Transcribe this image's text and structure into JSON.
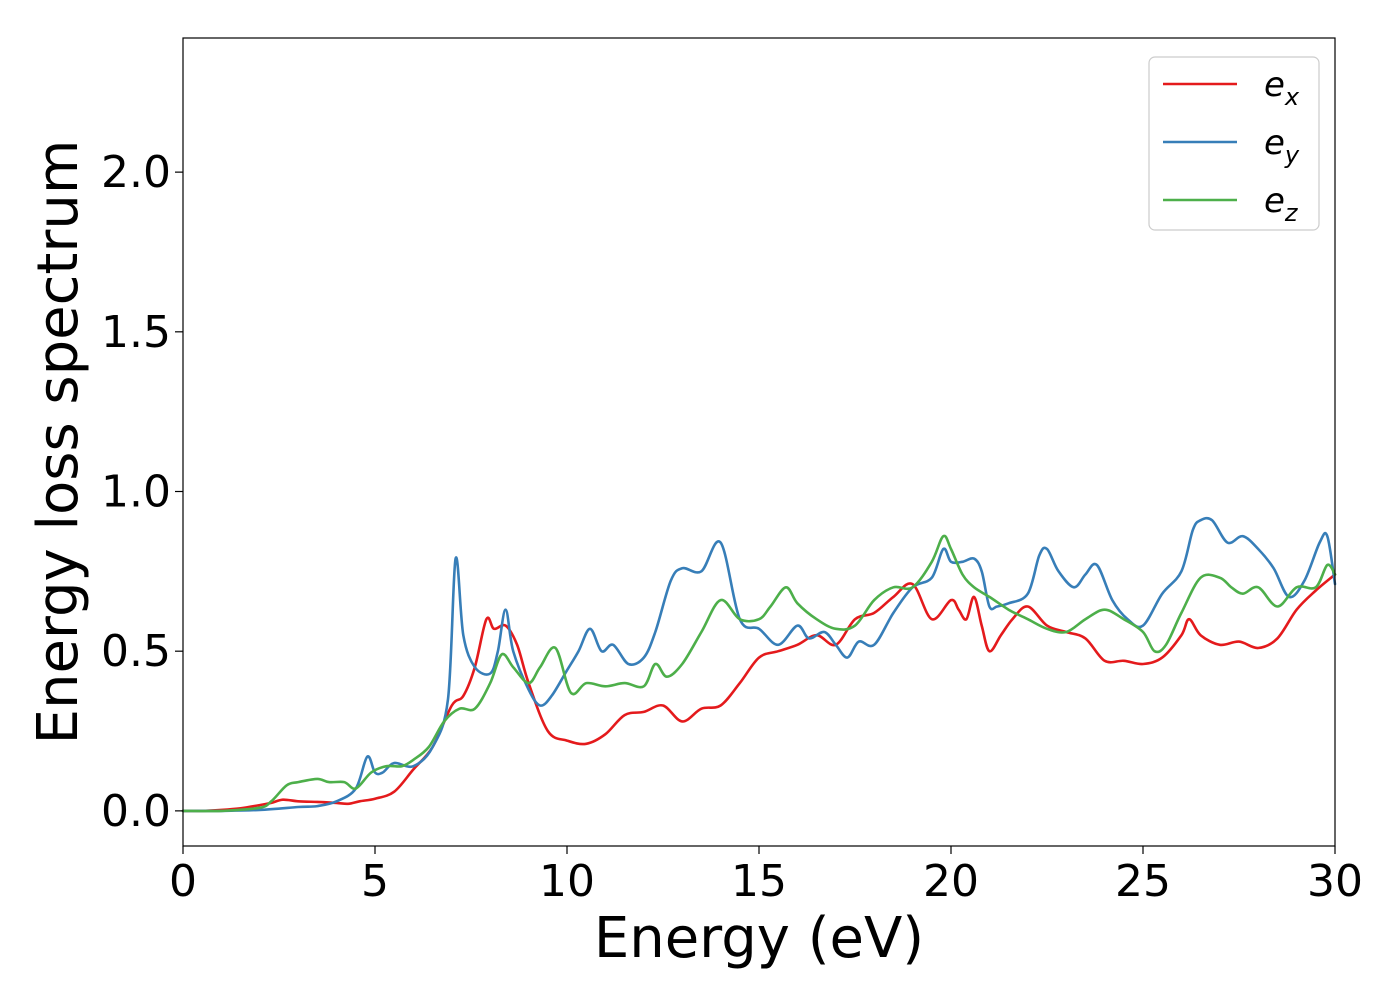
{
  "chart_data": {
    "type": "line",
    "title": "",
    "xlabel": "Energy (eV)",
    "ylabel": "Energy loss spectrum",
    "xlim": [
      0,
      30
    ],
    "ylim": [
      -0.11,
      2.42
    ],
    "xticks": [
      0,
      5,
      10,
      15,
      20,
      25,
      30
    ],
    "xtick_labels": [
      "0",
      "5",
      "10",
      "15",
      "20",
      "25",
      "30"
    ],
    "yticks": [
      0.0,
      0.5,
      1.0,
      1.5,
      2.0
    ],
    "ytick_labels": [
      "0.0",
      "0.5",
      "1.0",
      "1.5",
      "2.0"
    ],
    "grid": false,
    "legend_position": "top-right",
    "series": [
      {
        "name": "e_x",
        "label_main": "e",
        "label_sub": "x",
        "color": "#e41a1c",
        "x": [
          0,
          0.5,
          1,
          1.5,
          2,
          2.3,
          2.6,
          3,
          3.5,
          4,
          4.3,
          4.6,
          5,
          5.5,
          6,
          6.5,
          7,
          7.3,
          7.6,
          7.9,
          8.1,
          8.4,
          8.7,
          9,
          9.5,
          10,
          10.5,
          11,
          11.5,
          12,
          12.5,
          13,
          13.5,
          14,
          14.5,
          15,
          15.5,
          16,
          16.5,
          17,
          17.5,
          18,
          18.5,
          19,
          19.5,
          20,
          20.2,
          20.4,
          20.6,
          20.8,
          21,
          21.3,
          21.6,
          22,
          22.5,
          23,
          23.5,
          24,
          24.5,
          25,
          25.5,
          26,
          26.2,
          26.5,
          27,
          27.5,
          28,
          28.5,
          29,
          29.5,
          30
        ],
        "y": [
          0,
          0,
          0.003,
          0.008,
          0.018,
          0.025,
          0.035,
          0.03,
          0.028,
          0.025,
          0.022,
          0.03,
          0.038,
          0.06,
          0.13,
          0.2,
          0.33,
          0.36,
          0.45,
          0.6,
          0.57,
          0.58,
          0.52,
          0.4,
          0.25,
          0.22,
          0.21,
          0.24,
          0.3,
          0.31,
          0.33,
          0.28,
          0.32,
          0.33,
          0.4,
          0.48,
          0.5,
          0.52,
          0.55,
          0.52,
          0.6,
          0.62,
          0.67,
          0.71,
          0.6,
          0.66,
          0.63,
          0.6,
          0.67,
          0.58,
          0.5,
          0.55,
          0.6,
          0.64,
          0.58,
          0.56,
          0.54,
          0.47,
          0.47,
          0.46,
          0.48,
          0.55,
          0.6,
          0.55,
          0.52,
          0.53,
          0.51,
          0.54,
          0.63,
          0.69,
          0.74
        ]
      },
      {
        "name": "e_y",
        "label_main": "e",
        "label_sub": "y",
        "color": "#377eb8",
        "x": [
          0,
          1,
          2,
          3,
          3.5,
          4,
          4.5,
          4.8,
          5,
          5.2,
          5.5,
          6,
          6.5,
          6.9,
          7.1,
          7.3,
          7.6,
          8,
          8.2,
          8.4,
          8.6,
          9,
          9.3,
          9.6,
          10,
          10.3,
          10.6,
          10.9,
          11.2,
          11.6,
          12,
          12.3,
          12.7,
          13,
          13.5,
          14,
          14.5,
          15,
          15.5,
          16,
          16.3,
          16.7,
          17,
          17.3,
          17.6,
          18,
          18.5,
          19,
          19.5,
          19.8,
          20,
          20.3,
          20.6,
          20.8,
          21,
          21.2,
          21.5,
          22,
          22.3,
          22.5,
          22.8,
          23.2,
          23.5,
          23.8,
          24.2,
          24.6,
          25,
          25.5,
          26,
          26.3,
          26.5,
          26.8,
          27.2,
          27.6,
          28,
          28.4,
          28.8,
          29.2,
          29.6,
          29.8,
          30
        ],
        "y": [
          0,
          0,
          0.003,
          0.012,
          0.015,
          0.03,
          0.07,
          0.17,
          0.12,
          0.12,
          0.15,
          0.14,
          0.2,
          0.35,
          0.79,
          0.55,
          0.45,
          0.43,
          0.5,
          0.63,
          0.5,
          0.38,
          0.33,
          0.36,
          0.44,
          0.5,
          0.57,
          0.5,
          0.52,
          0.46,
          0.48,
          0.56,
          0.72,
          0.76,
          0.75,
          0.84,
          0.6,
          0.57,
          0.52,
          0.58,
          0.54,
          0.56,
          0.52,
          0.48,
          0.53,
          0.52,
          0.62,
          0.7,
          0.73,
          0.82,
          0.78,
          0.78,
          0.79,
          0.75,
          0.64,
          0.64,
          0.65,
          0.68,
          0.8,
          0.82,
          0.75,
          0.7,
          0.74,
          0.77,
          0.66,
          0.6,
          0.58,
          0.68,
          0.75,
          0.88,
          0.91,
          0.91,
          0.84,
          0.86,
          0.82,
          0.76,
          0.67,
          0.72,
          0.84,
          0.86,
          0.71
        ]
      },
      {
        "name": "e_z",
        "label_main": "e",
        "label_sub": "z",
        "color": "#4daf4a",
        "x": [
          0,
          1,
          2,
          2.3,
          2.7,
          3,
          3.5,
          3.8,
          4.2,
          4.5,
          4.9,
          5.3,
          5.7,
          6,
          6.4,
          6.8,
          7.2,
          7.6,
          8,
          8.3,
          8.6,
          9,
          9.3,
          9.7,
          10.1,
          10.5,
          11,
          11.5,
          12,
          12.3,
          12.6,
          13,
          13.5,
          14,
          14.5,
          15,
          15.3,
          15.7,
          16,
          16.5,
          17,
          17.5,
          18,
          18.5,
          19,
          19.5,
          19.8,
          20,
          20.3,
          20.6,
          21,
          21.5,
          22,
          22.5,
          23,
          23.5,
          24,
          24.5,
          25,
          25.3,
          25.6,
          26,
          26.5,
          27,
          27.3,
          27.6,
          28,
          28.5,
          29,
          29.5,
          29.8,
          30
        ],
        "y": [
          0,
          0,
          0.01,
          0.03,
          0.08,
          0.09,
          0.1,
          0.09,
          0.09,
          0.07,
          0.12,
          0.14,
          0.14,
          0.16,
          0.2,
          0.28,
          0.32,
          0.32,
          0.4,
          0.49,
          0.45,
          0.4,
          0.45,
          0.51,
          0.37,
          0.4,
          0.39,
          0.4,
          0.39,
          0.46,
          0.42,
          0.46,
          0.56,
          0.66,
          0.6,
          0.6,
          0.64,
          0.7,
          0.65,
          0.6,
          0.57,
          0.58,
          0.66,
          0.7,
          0.7,
          0.78,
          0.86,
          0.82,
          0.74,
          0.7,
          0.67,
          0.63,
          0.6,
          0.57,
          0.56,
          0.6,
          0.63,
          0.6,
          0.56,
          0.5,
          0.52,
          0.62,
          0.73,
          0.73,
          0.7,
          0.68,
          0.7,
          0.64,
          0.7,
          0.7,
          0.77,
          0.74
        ]
      }
    ]
  }
}
